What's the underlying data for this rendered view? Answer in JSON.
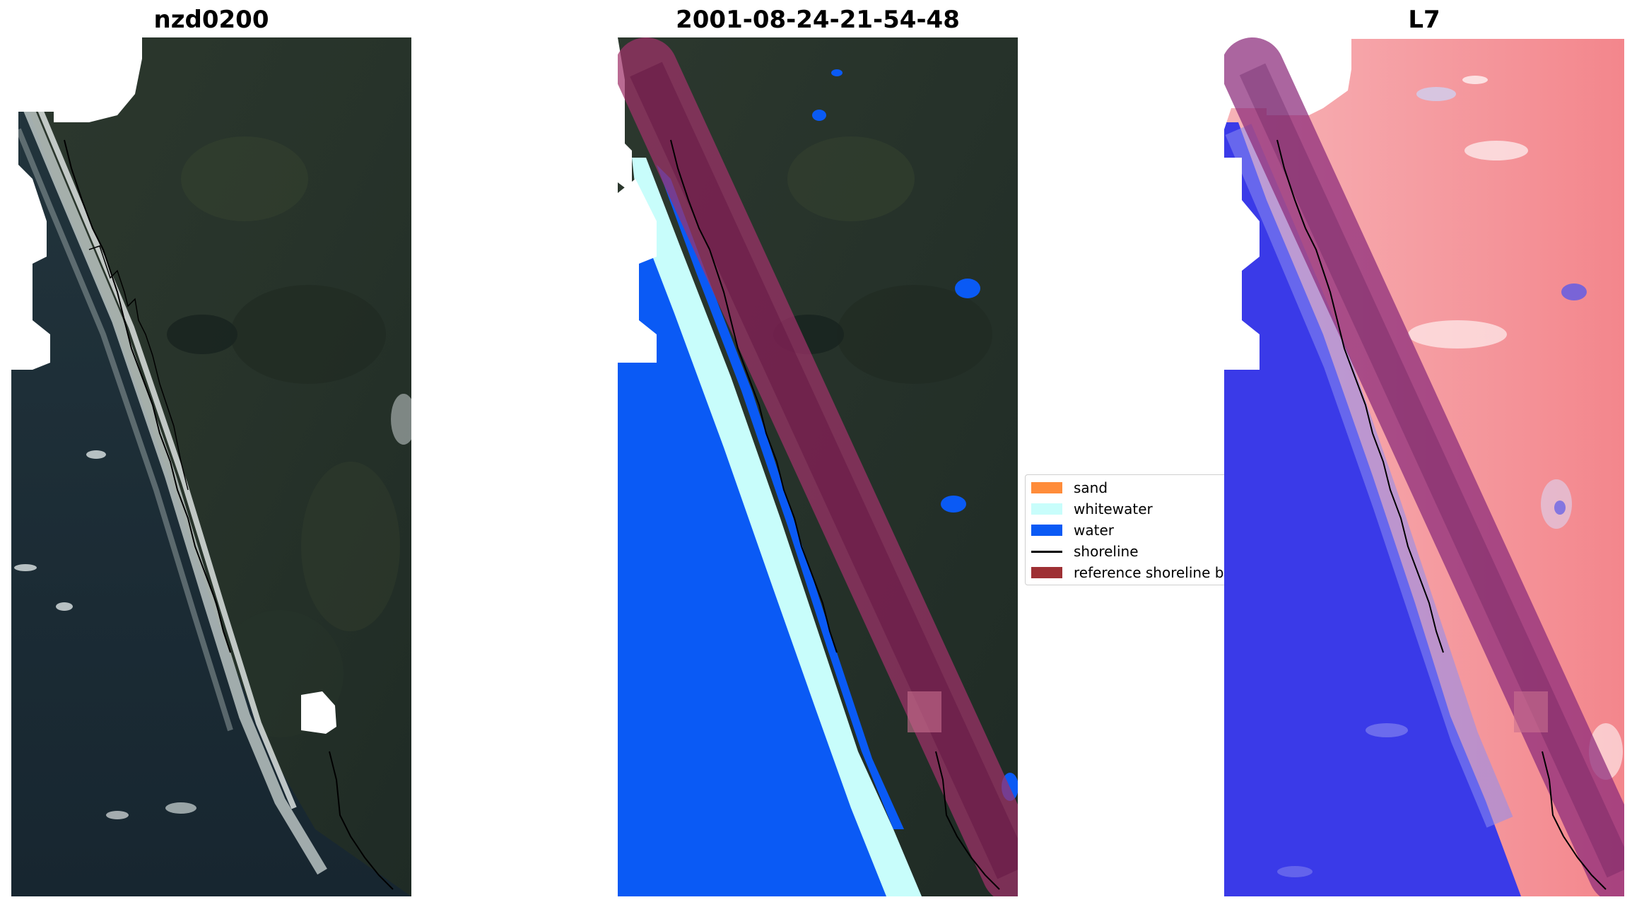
{
  "panels": [
    {
      "title": "nzd0200"
    },
    {
      "title": "2001-08-24-21-54-48"
    },
    {
      "title": "L7"
    }
  ],
  "legend": {
    "items": [
      {
        "label": "sand",
        "color": "#ff8c3a"
      },
      {
        "label": "whitewater",
        "color": "#c8fdfb"
      },
      {
        "label": "water",
        "color": "#0a5af5"
      },
      {
        "label": "shoreline",
        "color": "#000000"
      },
      {
        "label": "reference shoreline b",
        "color": "#9e3034"
      }
    ]
  },
  "colors": {
    "land_dark": "#283428",
    "ocean_dark": "#1c2c35",
    "water_class": "#0a5af5",
    "whitewater_class": "#c8fdfb",
    "buffer": "#a0326a",
    "index_land": "#f5a8ad",
    "index_water": "#3a3ae8"
  }
}
